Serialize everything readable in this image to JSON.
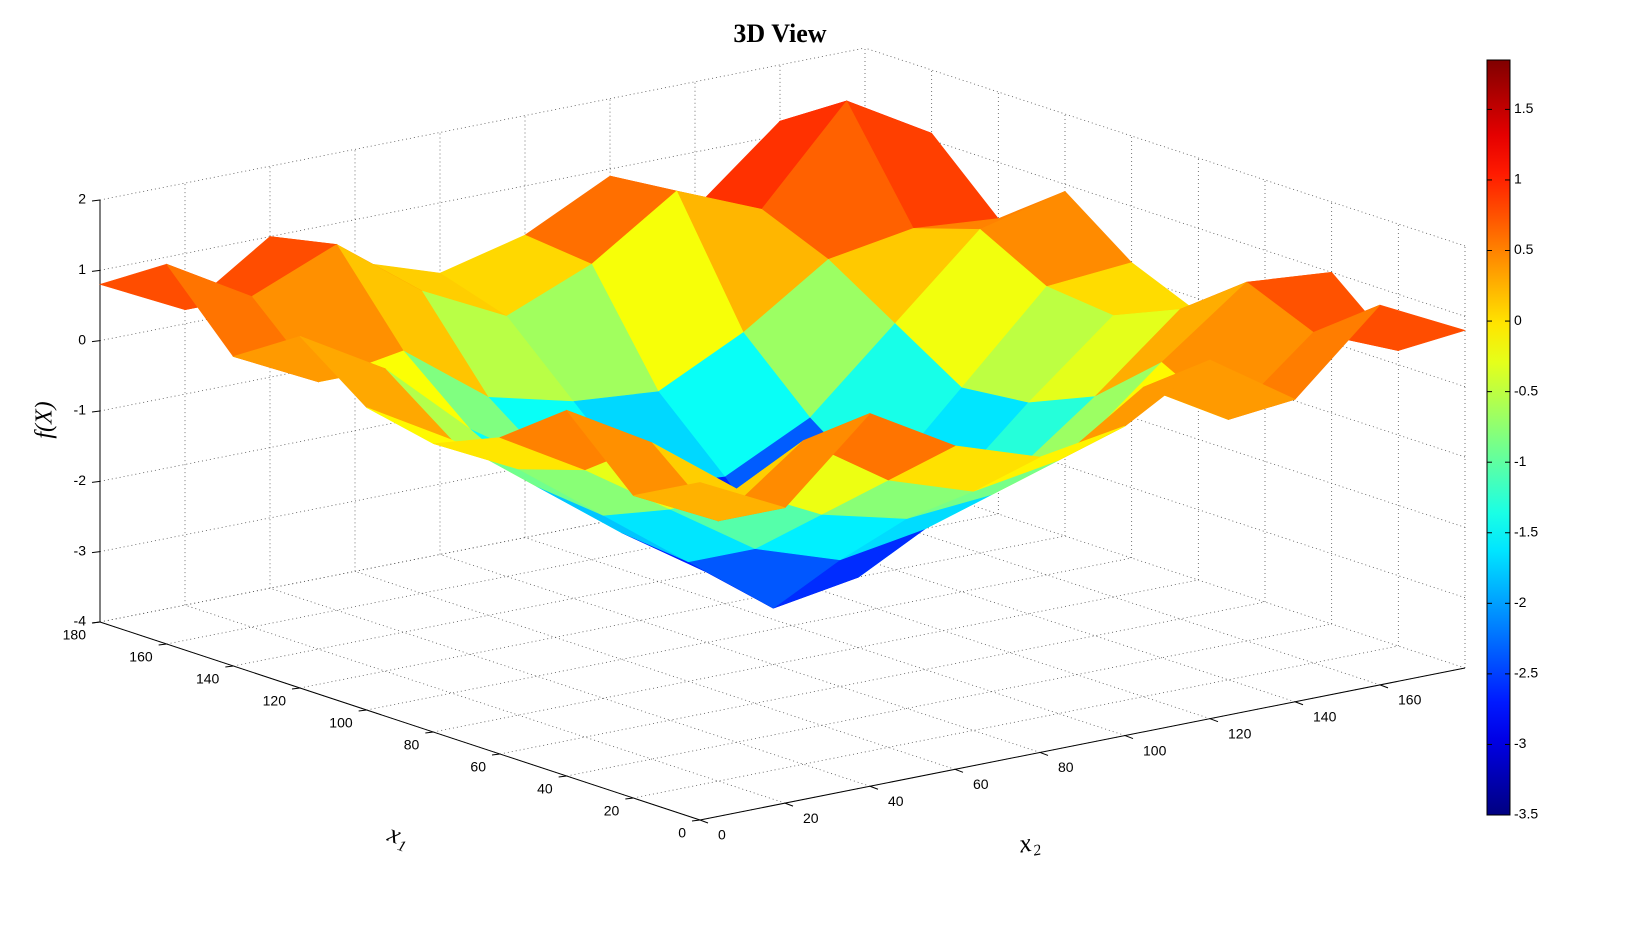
{
  "chart_data": {
    "type": "surface",
    "title": "3D View",
    "zlabel": "f(X)",
    "xlabel": "x₁",
    "ylabel": "x₂",
    "x1": [
      0,
      20,
      40,
      60,
      80,
      100,
      120,
      140,
      160,
      180
    ],
    "x2": [
      0,
      20,
      40,
      60,
      80,
      100,
      120,
      140,
      160,
      180
    ],
    "z": [
      [
        0.8,
        0.2,
        1.3,
        0.6,
        0.2,
        0.4,
        1.1,
        0.3,
        1.4,
        0.8
      ],
      [
        0.3,
        -0.3,
        0.6,
        -0.2,
        -0.6,
        -0.4,
        0.4,
        -0.3,
        0.7,
        0.2
      ],
      [
        1.2,
        0.5,
        -0.4,
        -1.0,
        -1.3,
        -1.2,
        -0.8,
        0.2,
        1.1,
        1.0
      ],
      [
        0.5,
        -0.2,
        -1.0,
        -1.8,
        -2.2,
        -2.0,
        -1.5,
        -0.6,
        0.4,
        0.3
      ],
      [
        0.1,
        -0.5,
        -1.4,
        -2.3,
        -3.2,
        -3.0,
        -2.1,
        -1.0,
        0.0,
        -0.2
      ],
      [
        0.3,
        -0.4,
        -1.3,
        -2.2,
        -3.0,
        -3.3,
        -2.3,
        -1.1,
        0.1,
        0.2
      ],
      [
        1.0,
        0.3,
        -0.8,
        -1.6,
        -2.1,
        -2.2,
        -1.6,
        -0.5,
        0.6,
        0.9
      ],
      [
        0.4,
        -0.2,
        0.0,
        -0.9,
        -1.2,
        -1.3,
        -0.7,
        0.1,
        0.3,
        0.2
      ],
      [
        1.4,
        0.7,
        1.2,
        0.3,
        -0.3,
        0.2,
        1.0,
        0.5,
        1.8,
        1.1
      ],
      [
        0.8,
        0.2,
        1.0,
        0.4,
        0.0,
        0.3,
        0.9,
        0.2,
        1.2,
        0.7
      ]
    ],
    "xlim": [
      0,
      180
    ],
    "xticks": [
      0,
      20,
      40,
      60,
      80,
      100,
      120,
      140,
      160,
      180
    ],
    "ylim": [
      0,
      180
    ],
    "yticks": [
      0,
      20,
      40,
      60,
      80,
      100,
      120,
      140,
      160
    ],
    "zlim": [
      -4,
      2
    ],
    "zticks": [
      -4,
      -3,
      -2,
      -1,
      0,
      1,
      2
    ],
    "colormap": "jet",
    "clim": [
      -3.5,
      1.85
    ],
    "cticks": [
      -3.5,
      -3,
      -2.5,
      -2,
      -1.5,
      -1,
      -0.5,
      0,
      0.5,
      1,
      1.5
    ],
    "grid": true
  }
}
